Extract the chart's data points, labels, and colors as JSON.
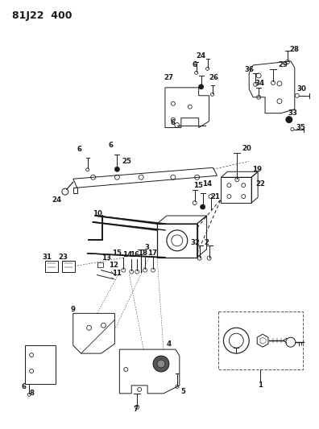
{
  "title": "81J22  400",
  "bg_color": "#ffffff",
  "line_color": "#1a1a1a",
  "fig_width": 3.96,
  "fig_height": 5.33,
  "dpi": 100
}
